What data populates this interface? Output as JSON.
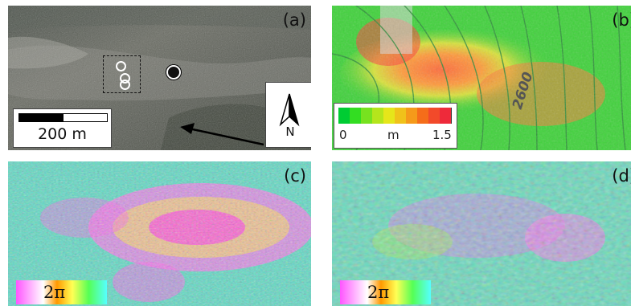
{
  "panels": {
    "a": {
      "label": "(a)",
      "scale_label": "200 m",
      "north_label": "N"
    },
    "b": {
      "label": "(b)",
      "contour_label": "2600",
      "colorbar": {
        "min_label": "0",
        "unit_label": "m",
        "max_label": "1.5",
        "colors": [
          "#00cc33",
          "#33dd22",
          "#77e21f",
          "#b5e51c",
          "#e6e61a",
          "#f0c21a",
          "#f59a1a",
          "#f56d1a",
          "#f24a2a",
          "#ee2a3a"
        ]
      }
    },
    "c": {
      "label": "(c)",
      "phase_label": "2π"
    },
    "d": {
      "label": "(d)",
      "phase_label": "2π"
    }
  },
  "colors": {
    "aerial": "#5e6259",
    "landslide_red": "#ff5a3a",
    "base_green": "#3fd23a"
  }
}
